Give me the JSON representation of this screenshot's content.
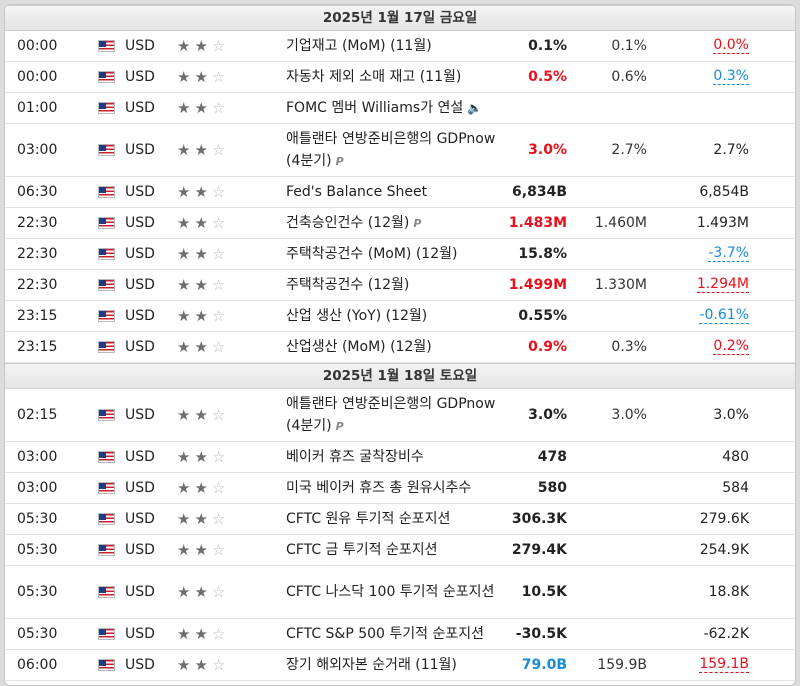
{
  "colors": {
    "positive": "#1a8bd6",
    "negative": "#e8101a"
  },
  "days": [
    {
      "header": "2025년 1월 17일 금요일",
      "rows": [
        {
          "time": "00:00",
          "currency": "USD",
          "stars": 2,
          "event": "기업재고 (MoM) (11월)",
          "actual": "0.1%",
          "actual_color": "",
          "forecast": "0.1%",
          "previous": "0.0%",
          "previous_color": "red",
          "tag": "",
          "tall": false
        },
        {
          "time": "00:00",
          "currency": "USD",
          "stars": 2,
          "event": "자동차 제외 소매 재고 (11월)",
          "actual": "0.5%",
          "actual_color": "red",
          "forecast": "0.6%",
          "previous": "0.3%",
          "previous_color": "blue",
          "tag": "",
          "tall": false
        },
        {
          "time": "01:00",
          "currency": "USD",
          "stars": 2,
          "event": "FOMC 멤버 Williams가 연설",
          "actual": "",
          "actual_color": "",
          "forecast": "",
          "previous": "",
          "previous_color": "",
          "tag": "speaker",
          "tall": false
        },
        {
          "time": "03:00",
          "currency": "USD",
          "stars": 2,
          "event": "애틀랜타 연방준비은행의 GDPnow (4분기)",
          "actual": "3.0%",
          "actual_color": "red",
          "forecast": "2.7%",
          "previous": "2.7%",
          "previous_color": "",
          "tag": "P",
          "tall": true
        },
        {
          "time": "06:30",
          "currency": "USD",
          "stars": 2,
          "event": "Fed's Balance Sheet",
          "actual": "6,834B",
          "actual_color": "",
          "forecast": "",
          "previous": "6,854B",
          "previous_color": "",
          "tag": "",
          "tall": false
        },
        {
          "time": "22:30",
          "currency": "USD",
          "stars": 2,
          "event": "건축승인건수 (12월)",
          "actual": "1.483M",
          "actual_color": "red",
          "forecast": "1.460M",
          "previous": "1.493M",
          "previous_color": "",
          "tag": "P",
          "tall": false
        },
        {
          "time": "22:30",
          "currency": "USD",
          "stars": 2,
          "event": "주택착공건수 (MoM) (12월)",
          "actual": "15.8%",
          "actual_color": "",
          "forecast": "",
          "previous": "-3.7%",
          "previous_color": "blue",
          "tag": "",
          "tall": false
        },
        {
          "time": "22:30",
          "currency": "USD",
          "stars": 2,
          "event": "주택착공건수 (12월)",
          "actual": "1.499M",
          "actual_color": "red",
          "forecast": "1.330M",
          "previous": "1.294M",
          "previous_color": "red",
          "tag": "",
          "tall": false
        },
        {
          "time": "23:15",
          "currency": "USD",
          "stars": 2,
          "event": "산업 생산 (YoY) (12월)",
          "actual": "0.55%",
          "actual_color": "",
          "forecast": "",
          "previous": "-0.61%",
          "previous_color": "blue",
          "tag": "",
          "tall": false
        },
        {
          "time": "23:15",
          "currency": "USD",
          "stars": 2,
          "event": "산업생산 (MoM) (12월)",
          "actual": "0.9%",
          "actual_color": "red",
          "forecast": "0.3%",
          "previous": "0.2%",
          "previous_color": "red",
          "tag": "",
          "tall": false
        }
      ]
    },
    {
      "header": "2025년 1월 18일 토요일",
      "rows": [
        {
          "time": "02:15",
          "currency": "USD",
          "stars": 2,
          "event": "애틀랜타 연방준비은행의 GDPnow (4분기)",
          "actual": "3.0%",
          "actual_color": "",
          "forecast": "3.0%",
          "previous": "3.0%",
          "previous_color": "",
          "tag": "P",
          "tall": true
        },
        {
          "time": "03:00",
          "currency": "USD",
          "stars": 2,
          "event": "베이커 휴즈 굴착장비수",
          "actual": "478",
          "actual_color": "",
          "forecast": "",
          "previous": "480",
          "previous_color": "",
          "tag": "",
          "tall": false
        },
        {
          "time": "03:00",
          "currency": "USD",
          "stars": 2,
          "event": "미국 베이커 휴즈 총 원유시추수",
          "actual": "580",
          "actual_color": "",
          "forecast": "",
          "previous": "584",
          "previous_color": "",
          "tag": "",
          "tall": false
        },
        {
          "time": "05:30",
          "currency": "USD",
          "stars": 2,
          "event": "CFTC 원유 투기적 순포지션",
          "actual": "306.3K",
          "actual_color": "",
          "forecast": "",
          "previous": "279.6K",
          "previous_color": "",
          "tag": "",
          "tall": false
        },
        {
          "time": "05:30",
          "currency": "USD",
          "stars": 2,
          "event": "CFTC 금 투기적 순포지션",
          "actual": "279.4K",
          "actual_color": "",
          "forecast": "",
          "previous": "254.9K",
          "previous_color": "",
          "tag": "",
          "tall": false
        },
        {
          "time": "05:30",
          "currency": "USD",
          "stars": 2,
          "event": "CFTC 나스닥 100 투기적 순포지션",
          "actual": "10.5K",
          "actual_color": "",
          "forecast": "",
          "previous": "18.8K",
          "previous_color": "",
          "tag": "",
          "tall": true
        },
        {
          "time": "05:30",
          "currency": "USD",
          "stars": 2,
          "event": "CFTC S&P 500 투기적 순포지션",
          "actual": "-30.5K",
          "actual_color": "",
          "forecast": "",
          "previous": "-62.2K",
          "previous_color": "",
          "tag": "",
          "tall": false
        },
        {
          "time": "06:00",
          "currency": "USD",
          "stars": 2,
          "event": "장기 해외자본 순거래 (11월)",
          "actual": "79.0B",
          "actual_color": "blue",
          "forecast": "159.9B",
          "previous": "159.1B",
          "previous_color": "red",
          "tag": "",
          "tall": false
        }
      ]
    }
  ]
}
